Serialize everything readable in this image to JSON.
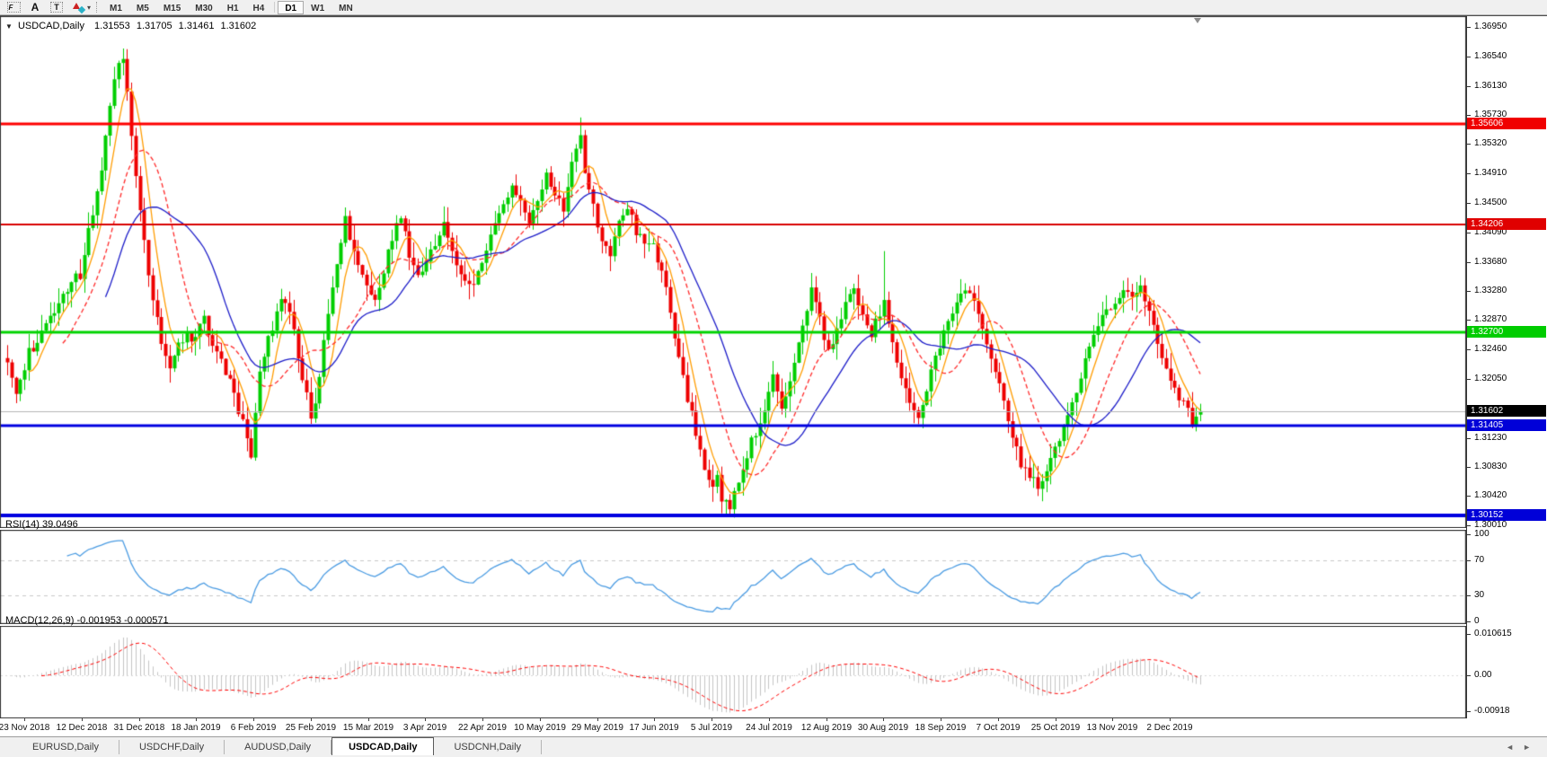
{
  "toolbar": {
    "tools": [
      {
        "name": "fibonacci",
        "glyph": "F"
      },
      {
        "name": "text",
        "glyph": "A"
      },
      {
        "name": "text-label",
        "glyph": "T"
      },
      {
        "name": "arrows",
        "glyph": ""
      }
    ],
    "dropdown_caret": "▾",
    "timeframes": [
      "M1",
      "M5",
      "M15",
      "M30",
      "H1",
      "H4",
      "D1",
      "W1",
      "MN"
    ],
    "active_timeframe": "D1"
  },
  "main_chart": {
    "collapse_arrow": "▼",
    "symbol_label": "USDCAD,Daily",
    "open": "1.31553",
    "high": "1.31705",
    "low": "1.31461",
    "close": "1.31602"
  },
  "price_axis": {
    "ticks": [
      "1.36950",
      "1.36540",
      "1.36130",
      "1.35730",
      "1.35320",
      "1.34910",
      "1.34500",
      "1.34090",
      "1.33680",
      "1.33280",
      "1.32870",
      "1.32460",
      "1.32050",
      "1.31230",
      "1.30830",
      "1.30420",
      "1.30010"
    ],
    "badges": [
      {
        "text": "1.35606",
        "bg": "#f00000"
      },
      {
        "text": "1.34206",
        "bg": "#e00000"
      },
      {
        "text": "1.32700",
        "bg": "#00cc00"
      },
      {
        "text": "1.31602",
        "bg": "#000000"
      },
      {
        "text": "1.31405",
        "bg": "#0000d8"
      },
      {
        "text": "1.30152",
        "bg": "#0000d8"
      }
    ]
  },
  "rsi_panel": {
    "label": "RSI(14)",
    "value": "39.0496",
    "axis_ticks": [
      {
        "text": "100",
        "v": 100
      },
      {
        "text": "70",
        "v": 70
      },
      {
        "text": "30",
        "v": 30
      },
      {
        "text": "0",
        "v": 0
      }
    ]
  },
  "macd_panel": {
    "label": "MACD(12,26,9)",
    "macd_value": "-0.001953",
    "signal_value": "-0.000571",
    "axis_ticks": [
      {
        "text": "0.010615",
        "v": 0.010615
      },
      {
        "text": "0.00",
        "v": 0
      },
      {
        "text": "-0.00918",
        "v": -0.00918
      }
    ]
  },
  "date_axis": {
    "labels": [
      "23 Nov 2018",
      "12 Dec 2018",
      "31 Dec 2018",
      "18 Jan 2019",
      "6 Feb 2019",
      "25 Feb 2019",
      "15 Mar 2019",
      "3 Apr 2019",
      "22 Apr 2019",
      "10 May 2019",
      "29 May 2019",
      "17 Jun 2019",
      "5 Jul 2019",
      "24 Jul 2019",
      "12 Aug 2019",
      "30 Aug 2019",
      "18 Sep 2019",
      "7 Oct 2019",
      "25 Oct 2019",
      "13 Nov 2019",
      "2 Dec 2019"
    ]
  },
  "tab_bar": {
    "tabs": [
      {
        "label": "EURUSD,Daily",
        "active": false
      },
      {
        "label": "USDCHF,Daily",
        "active": false
      },
      {
        "label": "AUDUSD,Daily",
        "active": false
      },
      {
        "label": "USDCAD,Daily",
        "active": true
      },
      {
        "label": "USDCNH,Daily",
        "active": false
      }
    ],
    "nav_left": "◄",
    "nav_right": "►"
  },
  "chart_data": {
    "type": "candlestick",
    "symbol": "USDCAD",
    "timeframe": "Daily",
    "bars": 280,
    "current_bar": {
      "open": 1.31553,
      "high": 1.31705,
      "low": 1.31461,
      "close": 1.31602
    },
    "price_axis": {
      "min": 1.3001,
      "max": 1.3695,
      "tick_step": 0.0041
    },
    "close_waypoints": [
      [
        0,
        1.3226
      ],
      [
        2,
        1.318
      ],
      [
        5,
        1.3242
      ],
      [
        8,
        1.3268
      ],
      [
        11,
        1.33
      ],
      [
        14,
        1.3328
      ],
      [
        17,
        1.3352
      ],
      [
        20,
        1.344
      ],
      [
        22,
        1.35
      ],
      [
        24,
        1.359
      ],
      [
        26,
        1.364
      ],
      [
        27,
        1.3652
      ],
      [
        28,
        1.36
      ],
      [
        29,
        1.355
      ],
      [
        30,
        1.348
      ],
      [
        32,
        1.3395
      ],
      [
        34,
        1.331
      ],
      [
        36,
        1.3258
      ],
      [
        38,
        1.322
      ],
      [
        40,
        1.3252
      ],
      [
        42,
        1.3268
      ],
      [
        44,
        1.3262
      ],
      [
        46,
        1.329
      ],
      [
        48,
        1.3255
      ],
      [
        50,
        1.323
      ],
      [
        52,
        1.3205
      ],
      [
        54,
        1.316
      ],
      [
        56,
        1.3125
      ],
      [
        57,
        1.3098
      ],
      [
        59,
        1.3215
      ],
      [
        61,
        1.326
      ],
      [
        63,
        1.33
      ],
      [
        65,
        1.3318
      ],
      [
        67,
        1.327
      ],
      [
        69,
        1.321
      ],
      [
        71,
        1.3152
      ],
      [
        73,
        1.3205
      ],
      [
        75,
        1.33
      ],
      [
        77,
        1.3365
      ],
      [
        79,
        1.3428
      ],
      [
        81,
        1.3385
      ],
      [
        84,
        1.333
      ],
      [
        86,
        1.3312
      ],
      [
        88,
        1.3355
      ],
      [
        90,
        1.34
      ],
      [
        92,
        1.3428
      ],
      [
        94,
        1.338
      ],
      [
        96,
        1.335
      ],
      [
        98,
        1.3368
      ],
      [
        100,
        1.339
      ],
      [
        102,
        1.342
      ],
      [
        104,
        1.3388
      ],
      [
        106,
        1.335
      ],
      [
        108,
        1.333
      ],
      [
        110,
        1.3355
      ],
      [
        112,
        1.339
      ],
      [
        114,
        1.342
      ],
      [
        116,
        1.3448
      ],
      [
        118,
        1.3478
      ],
      [
        120,
        1.345
      ],
      [
        122,
        1.3425
      ],
      [
        124,
        1.3458
      ],
      [
        126,
        1.3488
      ],
      [
        128,
        1.3465
      ],
      [
        130,
        1.3445
      ],
      [
        132,
        1.3505
      ],
      [
        134,
        1.3552
      ],
      [
        135,
        1.3495
      ],
      [
        137,
        1.3445
      ],
      [
        139,
        1.34
      ],
      [
        141,
        1.3378
      ],
      [
        143,
        1.342
      ],
      [
        145,
        1.344
      ],
      [
        147,
        1.3412
      ],
      [
        149,
        1.34
      ],
      [
        151,
        1.339
      ],
      [
        153,
        1.3358
      ],
      [
        155,
        1.3298
      ],
      [
        157,
        1.3238
      ],
      [
        159,
        1.3178
      ],
      [
        161,
        1.3128
      ],
      [
        163,
        1.3082
      ],
      [
        165,
        1.3058
      ],
      [
        166,
        1.3078
      ],
      [
        167,
        1.3038
      ],
      [
        169,
        1.3028
      ],
      [
        171,
        1.3062
      ],
      [
        173,
        1.3102
      ],
      [
        175,
        1.3132
      ],
      [
        177,
        1.3168
      ],
      [
        179,
        1.3208
      ],
      [
        181,
        1.3165
      ],
      [
        183,
        1.3208
      ],
      [
        185,
        1.3258
      ],
      [
        187,
        1.3305
      ],
      [
        188,
        1.3338
      ],
      [
        190,
        1.3288
      ],
      [
        192,
        1.3242
      ],
      [
        194,
        1.3278
      ],
      [
        196,
        1.3308
      ],
      [
        198,
        1.333
      ],
      [
        200,
        1.3298
      ],
      [
        202,
        1.3268
      ],
      [
        204,
        1.3298
      ],
      [
        205,
        1.3308
      ],
      [
        207,
        1.3258
      ],
      [
        209,
        1.3208
      ],
      [
        211,
        1.3165
      ],
      [
        213,
        1.3145
      ],
      [
        215,
        1.319
      ],
      [
        217,
        1.324
      ],
      [
        219,
        1.327
      ],
      [
        221,
        1.3298
      ],
      [
        223,
        1.3318
      ],
      [
        225,
        1.333
      ],
      [
        227,
        1.3298
      ],
      [
        229,
        1.3258
      ],
      [
        231,
        1.3218
      ],
      [
        233,
        1.3178
      ],
      [
        235,
        1.3128
      ],
      [
        237,
        1.3088
      ],
      [
        239,
        1.3068
      ],
      [
        241,
        1.3055
      ],
      [
        243,
        1.3075
      ],
      [
        245,
        1.3108
      ],
      [
        247,
        1.3138
      ],
      [
        249,
        1.3168
      ],
      [
        251,
        1.3208
      ],
      [
        253,
        1.3248
      ],
      [
        255,
        1.3278
      ],
      [
        257,
        1.3298
      ],
      [
        259,
        1.3308
      ],
      [
        261,
        1.3328
      ],
      [
        263,
        1.3312
      ],
      [
        265,
        1.333
      ],
      [
        267,
        1.3298
      ],
      [
        269,
        1.3258
      ],
      [
        271,
        1.3218
      ],
      [
        273,
        1.3188
      ],
      [
        275,
        1.3168
      ],
      [
        277,
        1.3148
      ],
      [
        279,
        1.31602
      ]
    ],
    "bar_overrides": {
      "27": {
        "high": 1.3665
      },
      "134": {
        "high": 1.3569
      },
      "167": {
        "low": 1.3018
      },
      "205": {
        "high": 1.3383
      },
      "241": {
        "low": 1.3042
      },
      "279": {
        "open": 1.31553,
        "high": 1.31705,
        "low": 1.31461,
        "close": 1.31602
      }
    },
    "moving_averages": [
      {
        "period": 6,
        "color": "#ff9c00",
        "style": "solid"
      },
      {
        "period": 14,
        "color": "#ff2a2a",
        "style": "dashed"
      },
      {
        "period": 24,
        "color": "#1c1cc8",
        "style": "solid"
      }
    ],
    "horizontal_levels": [
      {
        "price": 1.35606,
        "color": "#fe0000",
        "width": 3
      },
      {
        "price": 1.34206,
        "color": "#d80000",
        "width": 2
      },
      {
        "price": 1.327,
        "color": "#00d400",
        "width": 3
      },
      {
        "price": 1.31405,
        "color": "#0000e0",
        "width": 3
      },
      {
        "price": 1.30152,
        "color": "#0000e0",
        "width": 4
      }
    ],
    "current_price_line": {
      "price": 1.31602,
      "color": "#b4b4b4"
    },
    "rsi": {
      "period": 14,
      "current": 39.0496,
      "levels": [
        70,
        30
      ],
      "range": [
        0,
        100
      ]
    },
    "macd": {
      "fast": 12,
      "slow": 26,
      "signal_period": 9,
      "current_macd": -0.001953,
      "current_signal": -0.000571,
      "axis_top": 0.010615,
      "axis_bottom": -0.00918
    },
    "colors": {
      "bull": "#00ce00",
      "bear": "#ee0000",
      "rsi_line": "#4a9be2",
      "macd_hist": "#c4c4c4",
      "macd_signal": "#ff0000",
      "level_dash": "#c8c8c8"
    }
  }
}
